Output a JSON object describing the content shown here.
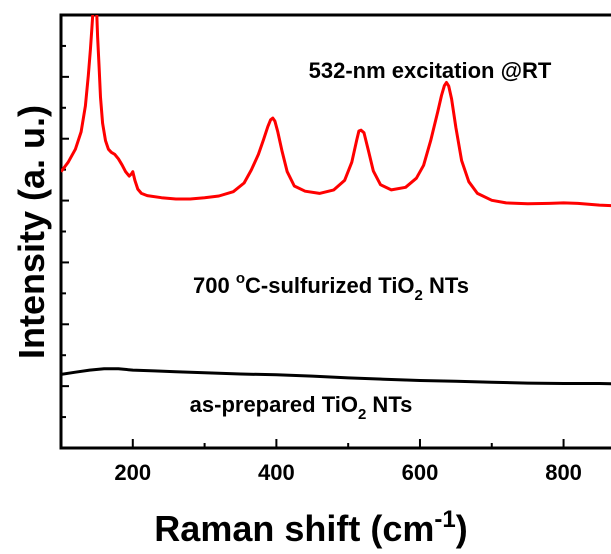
{
  "chart_data": {
    "type": "line",
    "xlabel": "Raman shift (cm",
    "xlabel_sup": "-1",
    "xlabel_end": ")",
    "ylabel": "Intensity (a. u.)",
    "xlim": [
      100,
      880
    ],
    "ylim": [
      0,
      100
    ],
    "x_ticks": [
      200,
      400,
      600,
      800
    ],
    "x_tick_labels": [
      "200",
      "400",
      "600",
      "800"
    ],
    "grid": false,
    "annotations": {
      "excitation": "532-nm excitation @RT",
      "sulfurized": {
        "p1": "700 ",
        "sup": "o",
        "p2": "C-sulfurized TiO",
        "sub": "2",
        "p3": " NTs"
      },
      "prepared": {
        "p1": "as-prepared TiO",
        "sub": "2",
        "p2": " NTs"
      }
    },
    "series": [
      {
        "color": "#ff0000",
        "x": [
          100,
          110,
          120,
          128,
          134,
          138,
          141,
          143,
          145,
          147,
          149,
          151,
          153,
          155,
          158,
          162,
          166,
          170,
          175,
          180,
          185,
          190,
          195,
          198,
          200,
          203,
          207,
          212,
          220,
          240,
          260,
          280,
          300,
          320,
          340,
          355,
          365,
          375,
          382,
          388,
          392,
          395,
          398,
          402,
          408,
          415,
          425,
          440,
          460,
          480,
          495,
          505,
          512,
          515,
          518,
          522,
          528,
          535,
          545,
          560,
          580,
          595,
          605,
          615,
          625,
          630,
          634,
          637,
          640,
          644,
          650,
          658,
          668,
          680,
          700,
          720,
          750,
          780,
          800,
          820,
          850,
          880
        ],
        "y": [
          63.8,
          66,
          69,
          73,
          79,
          86,
          92,
          97,
          102,
          110,
          104,
          95,
          88,
          81,
          75,
          71,
          69,
          68.3,
          67.8,
          66.8,
          65.4,
          63.8,
          62.8,
          63.3,
          63.8,
          61.8,
          59.8,
          58.8,
          58.3,
          57.8,
          57.5,
          57.5,
          57.8,
          58.2,
          59.2,
          61.2,
          64.2,
          67.8,
          71.2,
          74.2,
          75.8,
          76.2,
          75.5,
          73,
          68.5,
          63.8,
          60.5,
          59.3,
          58.8,
          59.6,
          61.8,
          66,
          71.2,
          73.2,
          73.4,
          72.8,
          68.8,
          64,
          60.8,
          59.6,
          60.2,
          62.3,
          65.3,
          71,
          77.8,
          81.4,
          83.7,
          84.4,
          83.6,
          80.6,
          74,
          66.4,
          61.5,
          58.8,
          57.2,
          56.6,
          56.4,
          56.5,
          56.6,
          56.5,
          56.1,
          55.9
        ]
      },
      {
        "color": "#000000",
        "x": [
          100,
          120,
          140,
          160,
          180,
          200,
          230,
          260,
          300,
          350,
          400,
          450,
          500,
          550,
          600,
          650,
          700,
          750,
          800,
          850,
          880
        ],
        "y": [
          17,
          17.5,
          18,
          18.3,
          18.3,
          18,
          17.8,
          17.6,
          17.4,
          17.1,
          16.9,
          16.6,
          16.2,
          15.9,
          15.6,
          15.4,
          15.2,
          15,
          14.9,
          14.9,
          14.8
        ]
      }
    ]
  }
}
